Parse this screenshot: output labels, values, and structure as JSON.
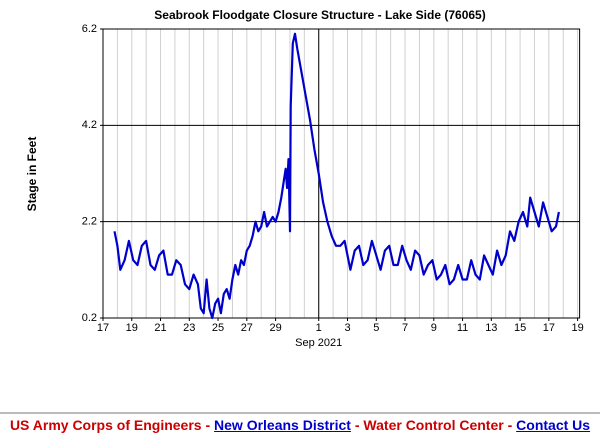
{
  "chart_data": {
    "type": "line",
    "title": "Seabrook Floodgate Closure Structure - Lake Side (76065)",
    "y_label": "Stage in Feet",
    "x_annotation": "Sep 2021",
    "xlim": [
      0,
      34
    ],
    "ylim": [
      0.2,
      6.2
    ],
    "yticks": [
      0.2,
      2.2,
      4.2,
      6.2
    ],
    "major_y": [
      2.2,
      4.2
    ],
    "major_x": [
      15
    ],
    "xticks": [
      {
        "value": 0,
        "label": "17"
      },
      {
        "value": 2,
        "label": "19"
      },
      {
        "value": 4,
        "label": "21"
      },
      {
        "value": 6,
        "label": "23"
      },
      {
        "value": 8,
        "label": "25"
      },
      {
        "value": 10,
        "label": "27"
      },
      {
        "value": 12,
        "label": "29"
      },
      {
        "value": 15,
        "label": "1"
      },
      {
        "value": 17,
        "label": "3"
      },
      {
        "value": 19,
        "label": "5"
      },
      {
        "value": 21,
        "label": "7"
      },
      {
        "value": 23,
        "label": "9"
      },
      {
        "value": 25,
        "label": "11"
      },
      {
        "value": 27,
        "label": "13"
      },
      {
        "value": 29,
        "label": "15"
      },
      {
        "value": 31,
        "label": "17"
      },
      {
        "value": 33,
        "label": "19"
      }
    ],
    "grid": true,
    "series": [
      {
        "name": "Stage",
        "color": "#0000cc",
        "x": [
          0.8,
          1.0,
          1.2,
          1.5,
          1.8,
          2.1,
          2.4,
          2.7,
          3.0,
          3.3,
          3.6,
          3.9,
          4.2,
          4.5,
          4.8,
          5.1,
          5.4,
          5.7,
          6.0,
          6.3,
          6.6,
          6.8,
          7.0,
          7.2,
          7.4,
          7.6,
          7.8,
          8.0,
          8.2,
          8.4,
          8.6,
          8.8,
          9.0,
          9.2,
          9.4,
          9.6,
          9.8,
          10.0,
          10.2,
          10.4,
          10.6,
          10.8,
          11.0,
          11.2,
          11.4,
          11.6,
          11.8,
          12.0,
          12.2,
          12.4,
          12.6,
          12.7,
          12.8,
          12.9,
          13.0,
          13.05,
          13.2,
          13.35,
          13.5,
          13.8,
          14.1,
          14.4,
          14.7,
          15.0,
          15.3,
          15.6,
          15.9,
          16.2,
          16.5,
          16.8,
          17.0,
          17.2,
          17.5,
          17.8,
          18.1,
          18.4,
          18.7,
          19.0,
          19.3,
          19.6,
          19.9,
          20.2,
          20.5,
          20.8,
          21.1,
          21.4,
          21.7,
          22.0,
          22.3,
          22.6,
          22.9,
          23.2,
          23.5,
          23.8,
          24.1,
          24.4,
          24.7,
          25.0,
          25.3,
          25.6,
          25.9,
          26.2,
          26.5,
          26.8,
          27.1,
          27.4,
          27.7,
          28.0,
          28.3,
          28.6,
          28.9,
          29.2,
          29.5,
          29.7,
          30.0,
          30.3,
          30.6,
          30.9,
          31.2,
          31.5,
          31.7
        ],
        "values": [
          2.0,
          1.7,
          1.2,
          1.4,
          1.8,
          1.4,
          1.3,
          1.7,
          1.8,
          1.3,
          1.2,
          1.5,
          1.6,
          1.1,
          1.1,
          1.4,
          1.3,
          0.9,
          0.8,
          1.1,
          0.9,
          0.4,
          0.3,
          1.0,
          0.4,
          0.2,
          0.5,
          0.6,
          0.3,
          0.7,
          0.8,
          0.6,
          1.0,
          1.3,
          1.1,
          1.4,
          1.3,
          1.6,
          1.7,
          1.9,
          2.2,
          2.0,
          2.1,
          2.4,
          2.1,
          2.2,
          2.3,
          2.2,
          2.4,
          2.7,
          3.1,
          3.3,
          2.9,
          3.5,
          2.0,
          4.6,
          5.9,
          6.1,
          5.8,
          5.3,
          4.8,
          4.3,
          3.7,
          3.2,
          2.6,
          2.2,
          1.9,
          1.7,
          1.7,
          1.8,
          1.5,
          1.2,
          1.6,
          1.7,
          1.3,
          1.4,
          1.8,
          1.5,
          1.2,
          1.6,
          1.7,
          1.3,
          1.3,
          1.7,
          1.4,
          1.2,
          1.6,
          1.5,
          1.1,
          1.3,
          1.4,
          1.0,
          1.1,
          1.3,
          0.9,
          1.0,
          1.3,
          1.0,
          1.0,
          1.4,
          1.1,
          1.0,
          1.5,
          1.3,
          1.1,
          1.6,
          1.3,
          1.5,
          2.0,
          1.8,
          2.2,
          2.4,
          2.1,
          2.7,
          2.4,
          2.1,
          2.6,
          2.3,
          2.0,
          2.1,
          2.4
        ]
      }
    ]
  },
  "footer": {
    "parts": [
      {
        "text": "US Army Corps of Engineers",
        "link": false
      },
      {
        "text": " - ",
        "link": false
      },
      {
        "text": "New Orleans District",
        "link": true
      },
      {
        "text": " - ",
        "link": false
      },
      {
        "text": "Water Control Center",
        "link": false
      },
      {
        "text": " - ",
        "link": false
      },
      {
        "text": "Contact Us",
        "link": true
      }
    ]
  }
}
